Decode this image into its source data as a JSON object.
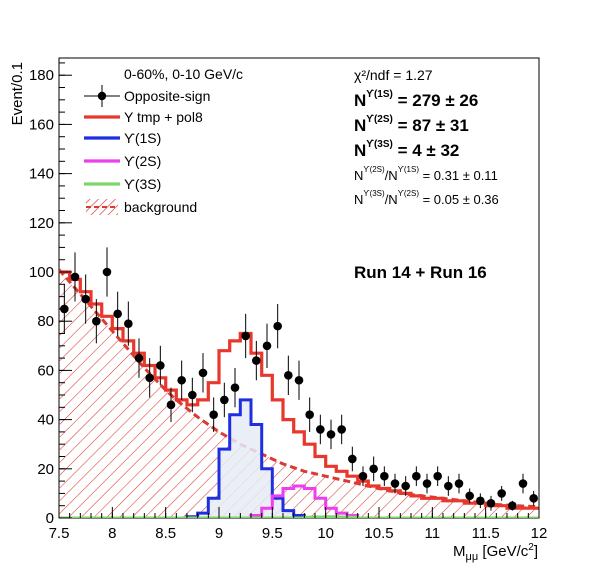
{
  "chart_data": {
    "type": "histogram",
    "xlabel_main": "M",
    "xlabel_sub": "μμ",
    "xlabel_unit_pre": " [GeV/c",
    "xlabel_unit_sup": "2",
    "xlabel_unit_post": "]",
    "ylabel": "Event/0.1",
    "xlim": [
      7.5,
      12
    ],
    "ylim": [
      0,
      187
    ],
    "xticks": [
      7.5,
      8,
      8.5,
      9,
      9.5,
      10,
      10.5,
      11,
      11.5,
      12
    ],
    "xtick_labels": [
      "7.5",
      "8",
      "8.5",
      "9",
      "9.5",
      "10",
      "10.5",
      "11",
      "11.5",
      "12"
    ],
    "yticks": [
      0,
      20,
      40,
      60,
      80,
      100,
      120,
      140,
      160,
      180
    ],
    "ytick_labels": [
      "0",
      "20",
      "40",
      "60",
      "80",
      "100",
      "120",
      "140",
      "160",
      "180"
    ],
    "legend": {
      "header": "0-60%, 0-10 GeV/c",
      "entries": [
        {
          "label": "Opposite-sign",
          "kind": "marker",
          "color": "#000000"
        },
        {
          "label": "Y tmp + pol8",
          "kind": "line",
          "color": "#e8372c"
        },
        {
          "label": "ϒ(1S)",
          "kind": "line",
          "color": "#1f2fe0"
        },
        {
          "label": "ϒ(2S)",
          "kind": "line",
          "color": "#ee3fee"
        },
        {
          "label": "ϒ(3S)",
          "kind": "line",
          "color": "#7fd66b"
        },
        {
          "label": "background",
          "kind": "hatch",
          "color": "#d83a34"
        }
      ]
    },
    "stats": {
      "chi2": "χ²/ndf = 1.27",
      "n1_base": "N",
      "n1_sup": "ϒ(1S)",
      "n1_val": " = 279 ± 26",
      "n2_base": "N",
      "n2_sup": "ϒ(2S)",
      "n2_val": " = 87 ± 31",
      "n3_base": "N",
      "n3_sup": "ϒ(3S)",
      "n3_val": " = 4 ± 32",
      "r1_a": "N",
      "r1_a_sup": "ϒ(2S)",
      "r1_b": "/N",
      "r1_b_sup": "ϒ(1S)",
      "r1_val": " = 0.31 ± 0.11",
      "r2_a": "N",
      "r2_a_sup": "ϒ(3S)",
      "r2_b": "/N",
      "r2_b_sup": "ϒ(2S)",
      "r2_val": " = 0.05 ± 0.36"
    },
    "run_label": "Run 14 + Run 16",
    "colors": {
      "total": "#e8372c",
      "y1s": "#1f2fe0",
      "y2s": "#ee3fee",
      "y3s": "#7fd66b",
      "background": "#d83a34",
      "y1s_fill": "#e6ecf6"
    },
    "bins": {
      "low_edge": 7.5,
      "width": 0.1,
      "total": [
        100,
        97,
        92,
        87,
        82,
        77,
        72,
        67,
        62,
        57,
        52,
        48,
        46,
        48,
        55,
        68,
        72,
        75,
        67,
        58,
        48,
        40,
        35,
        30,
        25,
        21,
        19,
        17,
        15,
        13,
        12,
        11,
        10,
        9,
        8,
        8,
        7,
        7,
        6,
        6,
        5,
        5,
        4,
        4,
        4
      ],
      "y1s": [
        0,
        0,
        0,
        0,
        0,
        0,
        0,
        0,
        0,
        0,
        0,
        0,
        0.5,
        2,
        8,
        28,
        42,
        48,
        38,
        20,
        8,
        3,
        1,
        0,
        0,
        0,
        0,
        0,
        0,
        0,
        0,
        0,
        0,
        0,
        0,
        0,
        0,
        0,
        0,
        0,
        0,
        0,
        0,
        0,
        0
      ],
      "y2s": [
        0,
        0,
        0,
        0,
        0,
        0,
        0,
        0,
        0,
        0,
        0,
        0,
        0,
        0,
        0,
        0,
        0,
        0,
        1,
        4,
        9,
        12,
        13,
        12,
        8,
        4,
        2,
        1,
        0,
        0,
        0,
        0,
        0,
        0,
        0,
        0,
        0,
        0,
        0,
        0,
        0,
        0,
        0,
        0,
        0
      ],
      "y3s": [
        0,
        0,
        0,
        0,
        0,
        0,
        0,
        0,
        0,
        0,
        0,
        0,
        0,
        0,
        0,
        0,
        0,
        0,
        0,
        0,
        0,
        0,
        0,
        0.3,
        0.4,
        0.5,
        0.4,
        0.3,
        0,
        0,
        0,
        0,
        0,
        0,
        0,
        0,
        0,
        0,
        0,
        0,
        0,
        0,
        0,
        0,
        0
      ]
    },
    "background_curve": [
      [
        7.5,
        101
      ],
      [
        7.6,
        96
      ],
      [
        7.7,
        91
      ],
      [
        7.8,
        86
      ],
      [
        7.9,
        81
      ],
      [
        8.0,
        76
      ],
      [
        8.1,
        71
      ],
      [
        8.2,
        66
      ],
      [
        8.3,
        61
      ],
      [
        8.4,
        56.5
      ],
      [
        8.5,
        52
      ],
      [
        8.6,
        48
      ],
      [
        8.7,
        44.5
      ],
      [
        8.8,
        41
      ],
      [
        8.9,
        38
      ],
      [
        9.0,
        35
      ],
      [
        9.1,
        32.5
      ],
      [
        9.2,
        30
      ],
      [
        9.3,
        28
      ],
      [
        9.4,
        26
      ],
      [
        9.5,
        24
      ],
      [
        9.6,
        22
      ],
      [
        9.7,
        20.5
      ],
      [
        9.8,
        19
      ],
      [
        9.9,
        18
      ],
      [
        10.0,
        17
      ],
      [
        10.2,
        15
      ],
      [
        10.4,
        13
      ],
      [
        10.6,
        11
      ],
      [
        10.8,
        9.5
      ],
      [
        11.0,
        8.5
      ],
      [
        11.2,
        7.5
      ],
      [
        11.4,
        6.5
      ],
      [
        11.6,
        5.5
      ],
      [
        11.8,
        5
      ],
      [
        12.0,
        4.5
      ]
    ],
    "data_points": [
      {
        "x": 7.55,
        "y": 85,
        "err": 10
      },
      {
        "x": 7.65,
        "y": 98,
        "err": 10
      },
      {
        "x": 7.75,
        "y": 89,
        "err": 10
      },
      {
        "x": 7.85,
        "y": 80,
        "err": 9
      },
      {
        "x": 7.95,
        "y": 100,
        "err": 10
      },
      {
        "x": 8.05,
        "y": 83,
        "err": 9
      },
      {
        "x": 8.15,
        "y": 79,
        "err": 9
      },
      {
        "x": 8.25,
        "y": 65,
        "err": 8
      },
      {
        "x": 8.35,
        "y": 57,
        "err": 8
      },
      {
        "x": 8.45,
        "y": 62,
        "err": 8
      },
      {
        "x": 8.55,
        "y": 46,
        "err": 7
      },
      {
        "x": 8.65,
        "y": 56,
        "err": 8
      },
      {
        "x": 8.75,
        "y": 50,
        "err": 7
      },
      {
        "x": 8.85,
        "y": 59,
        "err": 8
      },
      {
        "x": 8.95,
        "y": 42,
        "err": 7
      },
      {
        "x": 9.05,
        "y": 48,
        "err": 7
      },
      {
        "x": 9.15,
        "y": 53,
        "err": 8
      },
      {
        "x": 9.25,
        "y": 74,
        "err": 9
      },
      {
        "x": 9.35,
        "y": 64,
        "err": 8
      },
      {
        "x": 9.45,
        "y": 70,
        "err": 9
      },
      {
        "x": 9.55,
        "y": 78,
        "err": 9
      },
      {
        "x": 9.65,
        "y": 58,
        "err": 8
      },
      {
        "x": 9.75,
        "y": 56,
        "err": 8
      },
      {
        "x": 9.85,
        "y": 42,
        "err": 7
      },
      {
        "x": 9.95,
        "y": 36,
        "err": 6
      },
      {
        "x": 10.05,
        "y": 34,
        "err": 6
      },
      {
        "x": 10.15,
        "y": 36,
        "err": 6
      },
      {
        "x": 10.25,
        "y": 24,
        "err": 5
      },
      {
        "x": 10.35,
        "y": 17,
        "err": 4
      },
      {
        "x": 10.45,
        "y": 20,
        "err": 5
      },
      {
        "x": 10.55,
        "y": 17,
        "err": 4
      },
      {
        "x": 10.65,
        "y": 14,
        "err": 4
      },
      {
        "x": 10.75,
        "y": 13,
        "err": 4
      },
      {
        "x": 10.85,
        "y": 17,
        "err": 4
      },
      {
        "x": 10.95,
        "y": 14,
        "err": 4
      },
      {
        "x": 11.05,
        "y": 17,
        "err": 4
      },
      {
        "x": 11.15,
        "y": 13,
        "err": 4
      },
      {
        "x": 11.25,
        "y": 14,
        "err": 4
      },
      {
        "x": 11.35,
        "y": 9,
        "err": 3
      },
      {
        "x": 11.45,
        "y": 7,
        "err": 3
      },
      {
        "x": 11.55,
        "y": 6,
        "err": 3
      },
      {
        "x": 11.65,
        "y": 10,
        "err": 3
      },
      {
        "x": 11.75,
        "y": 5,
        "err": 2
      },
      {
        "x": 11.85,
        "y": 14,
        "err": 4
      },
      {
        "x": 11.95,
        "y": 8,
        "err": 3
      }
    ]
  }
}
